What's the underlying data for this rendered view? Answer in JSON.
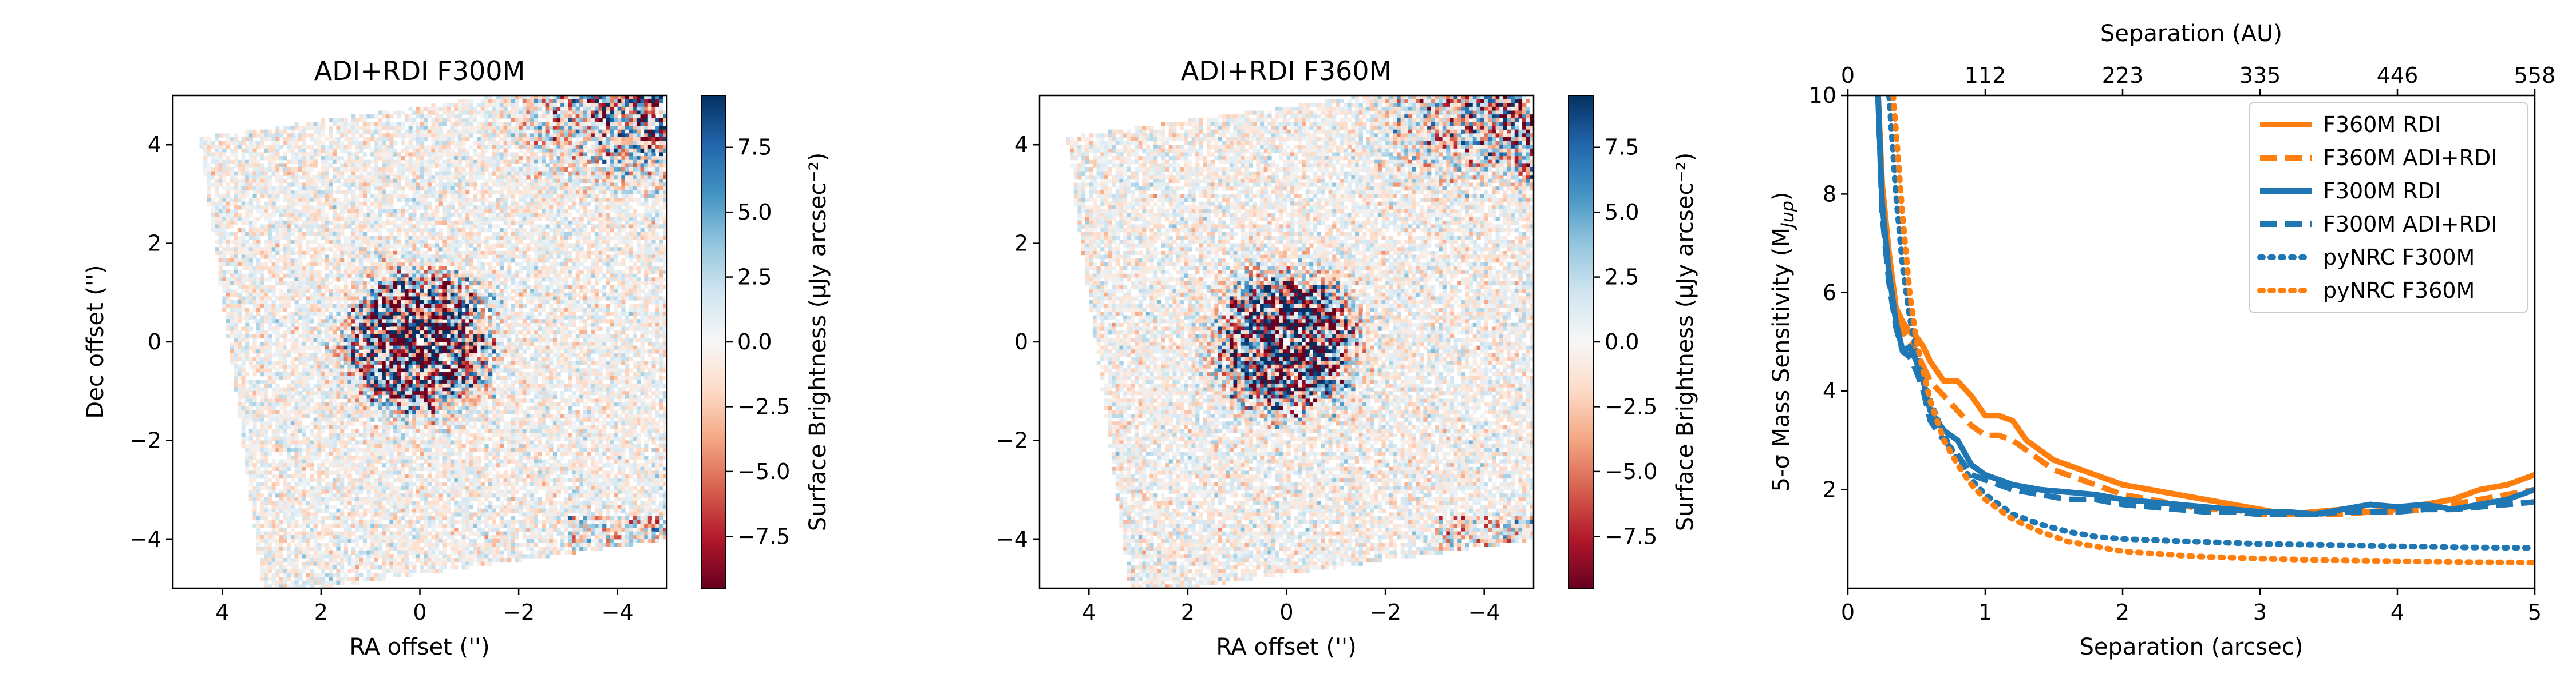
{
  "colors": {
    "f360m": "#ff7f0e",
    "f300m": "#1f77b4",
    "cmap_neg": "#67001f",
    "cmap_mid": "#f7f7f7",
    "cmap_pos": "#053061"
  },
  "chart_data": [
    {
      "type": "heatmap",
      "title": "ADI+RDI F300M",
      "xlabel": "RA offset ('')",
      "ylabel": "Dec offset ('')",
      "xlim": [
        5,
        -5
      ],
      "ylim": [
        -5,
        5
      ],
      "xticks": [
        "4",
        "2",
        "0",
        "−2",
        "−4"
      ],
      "xtick_values": [
        4,
        2,
        0,
        -2,
        -4
      ],
      "yticks": [
        "−4",
        "−2",
        "0",
        "2",
        "4"
      ],
      "ytick_values": [
        -4,
        -2,
        0,
        2,
        4
      ],
      "colorbar": {
        "label": "Surface Brightness (μJy arcsec⁻²)",
        "range": [
          -9.5,
          9.5
        ],
        "cmap": "RdBu",
        "ticks": [
          "−7.5",
          "−5.0",
          "−2.5",
          "0.0",
          "2.5",
          "5.0",
          "7.5"
        ],
        "tick_values": [
          -7.5,
          -5.0,
          -2.5,
          0.0,
          2.5,
          5.0,
          7.5
        ]
      },
      "image_footprint_rotation_deg": 8,
      "central_masked_radius_arcsec": 0.12,
      "residual_ring_radius_arcsec": 1.2,
      "bright_residual_corner": "top-right"
    },
    {
      "type": "heatmap",
      "title": "ADI+RDI F360M",
      "xlabel": "RA offset ('')",
      "ylabel": "",
      "xlim": [
        5,
        -5
      ],
      "ylim": [
        -5,
        5
      ],
      "xticks": [
        "4",
        "2",
        "0",
        "−2",
        "−4"
      ],
      "xtick_values": [
        4,
        2,
        0,
        -2,
        -4
      ],
      "yticks": [
        "−4",
        "−2",
        "0",
        "2",
        "4"
      ],
      "ytick_values": [
        -4,
        -2,
        0,
        2,
        4
      ],
      "colorbar": {
        "label": "Surface Brightness (μJy arcsec⁻²)",
        "range": [
          -9.5,
          9.5
        ],
        "cmap": "RdBu",
        "ticks": [
          "−7.5",
          "−5.0",
          "−2.5",
          "0.0",
          "2.5",
          "5.0",
          "7.5"
        ],
        "tick_values": [
          -7.5,
          -5.0,
          -2.5,
          0.0,
          2.5,
          5.0,
          7.5
        ]
      },
      "image_footprint_rotation_deg": 8,
      "central_masked_radius_arcsec": 0.12,
      "residual_ring_radius_arcsec": 1.2,
      "bright_residual_corner": "top-right"
    },
    {
      "type": "line",
      "title": "",
      "xlabel": "Separation (arcsec)",
      "x2label": "Separation (AU)",
      "ylabel": "5-σ Mass Sensitivity (M",
      "ylabel_sub": "Jup",
      "ylabel_end": ")",
      "xlim": [
        0,
        5
      ],
      "ylim": [
        0,
        10
      ],
      "xticks": [
        "0",
        "1",
        "2",
        "3",
        "4",
        "5"
      ],
      "xtick_values": [
        0,
        1,
        2,
        3,
        4,
        5
      ],
      "yticks": [
        "2",
        "4",
        "6",
        "8",
        "10"
      ],
      "ytick_values": [
        2,
        4,
        6,
        8,
        10
      ],
      "x2ticks": [
        "0",
        "112",
        "223",
        "335",
        "446",
        "558"
      ],
      "x2tick_values": [
        0,
        1,
        2,
        3,
        4,
        5
      ],
      "grid": false,
      "legend_position": "top-right",
      "series": [
        {
          "name": "F360M RDI",
          "color": "#ff7f0e",
          "style": "solid",
          "x": [
            0.22,
            0.25,
            0.3,
            0.35,
            0.4,
            0.45,
            0.5,
            0.55,
            0.6,
            0.7,
            0.8,
            0.9,
            1.0,
            1.1,
            1.2,
            1.3,
            1.4,
            1.5,
            1.6,
            1.8,
            2.0,
            2.2,
            2.4,
            2.6,
            2.8,
            3.0,
            3.2,
            3.4,
            3.6,
            3.8,
            4.0,
            4.2,
            4.4,
            4.6,
            4.8,
            5.0
          ],
          "y": [
            10.0,
            8.2,
            6.8,
            5.7,
            5.4,
            5.2,
            5.1,
            4.9,
            4.6,
            4.2,
            4.2,
            3.9,
            3.5,
            3.5,
            3.4,
            3.0,
            2.8,
            2.6,
            2.5,
            2.3,
            2.1,
            2.0,
            1.9,
            1.8,
            1.7,
            1.6,
            1.5,
            1.55,
            1.6,
            1.55,
            1.6,
            1.7,
            1.8,
            2.0,
            2.1,
            2.3
          ]
        },
        {
          "name": "F360M ADI+RDI",
          "color": "#ff7f0e",
          "style": "dashed",
          "x": [
            0.22,
            0.25,
            0.3,
            0.35,
            0.4,
            0.45,
            0.5,
            0.55,
            0.6,
            0.7,
            0.8,
            0.9,
            1.0,
            1.1,
            1.2,
            1.3,
            1.4,
            1.5,
            1.6,
            1.8,
            2.0,
            2.2,
            2.4,
            2.6,
            2.8,
            3.0,
            3.2,
            3.4,
            3.6,
            3.8,
            4.0,
            4.2,
            4.4,
            4.6,
            4.8,
            5.0
          ],
          "y": [
            10.0,
            8.0,
            6.6,
            5.5,
            5.2,
            5.0,
            4.8,
            4.5,
            4.2,
            3.9,
            3.6,
            3.3,
            3.1,
            3.1,
            3.0,
            2.8,
            2.6,
            2.4,
            2.3,
            2.1,
            1.9,
            1.8,
            1.7,
            1.6,
            1.6,
            1.5,
            1.5,
            1.5,
            1.5,
            1.55,
            1.55,
            1.6,
            1.7,
            1.8,
            1.9,
            2.0
          ]
        },
        {
          "name": "F300M RDI",
          "color": "#1f77b4",
          "style": "solid",
          "x": [
            0.22,
            0.25,
            0.3,
            0.35,
            0.4,
            0.45,
            0.5,
            0.55,
            0.6,
            0.7,
            0.8,
            0.9,
            1.0,
            1.2,
            1.4,
            1.6,
            1.8,
            2.0,
            2.2,
            2.4,
            2.6,
            2.8,
            3.0,
            3.2,
            3.4,
            3.6,
            3.8,
            4.0,
            4.2,
            4.4,
            4.6,
            4.8,
            5.0
          ],
          "y": [
            10.0,
            7.8,
            6.4,
            5.4,
            4.8,
            4.9,
            4.6,
            4.2,
            3.6,
            3.2,
            3.0,
            2.5,
            2.3,
            2.1,
            2.0,
            1.95,
            1.9,
            1.8,
            1.75,
            1.7,
            1.65,
            1.6,
            1.55,
            1.55,
            1.5,
            1.6,
            1.7,
            1.65,
            1.7,
            1.6,
            1.7,
            1.8,
            2.0
          ]
        },
        {
          "name": "F300M ADI+RDI",
          "color": "#1f77b4",
          "style": "dashed",
          "x": [
            0.22,
            0.25,
            0.3,
            0.35,
            0.4,
            0.45,
            0.5,
            0.55,
            0.6,
            0.7,
            0.8,
            0.9,
            1.0,
            1.2,
            1.4,
            1.6,
            1.8,
            2.0,
            2.2,
            2.4,
            2.6,
            2.8,
            3.0,
            3.2,
            3.4,
            3.6,
            3.8,
            4.0,
            4.2,
            4.4,
            4.6,
            4.8,
            5.0
          ],
          "y": [
            10.0,
            7.6,
            6.2,
            5.3,
            4.8,
            4.7,
            4.4,
            4.0,
            3.4,
            3.0,
            2.7,
            2.3,
            2.2,
            2.0,
            1.9,
            1.8,
            1.8,
            1.7,
            1.65,
            1.6,
            1.55,
            1.55,
            1.5,
            1.5,
            1.5,
            1.55,
            1.55,
            1.55,
            1.6,
            1.6,
            1.65,
            1.7,
            1.75
          ]
        },
        {
          "name": "pyNRC F300M",
          "color": "#1f77b4",
          "style": "dotted",
          "x": [
            0.3,
            0.35,
            0.4,
            0.45,
            0.5,
            0.6,
            0.7,
            0.8,
            0.9,
            1.0,
            1.2,
            1.4,
            1.6,
            1.8,
            2.0,
            2.5,
            3.0,
            3.5,
            4.0,
            4.5,
            5.0
          ],
          "y": [
            10.0,
            8.0,
            6.5,
            5.5,
            4.8,
            3.8,
            3.1,
            2.6,
            2.2,
            1.9,
            1.5,
            1.3,
            1.15,
            1.05,
            1.0,
            0.95,
            0.9,
            0.88,
            0.85,
            0.83,
            0.82
          ]
        },
        {
          "name": "pyNRC F360M",
          "color": "#ff7f0e",
          "style": "dotted",
          "x": [
            0.33,
            0.4,
            0.45,
            0.5,
            0.6,
            0.7,
            0.8,
            0.9,
            1.0,
            1.2,
            1.4,
            1.6,
            1.8,
            2.0,
            2.5,
            3.0,
            3.5,
            4.0,
            4.5,
            5.0
          ],
          "y": [
            10.0,
            7.5,
            6.0,
            5.0,
            3.8,
            3.0,
            2.5,
            2.1,
            1.8,
            1.4,
            1.15,
            0.95,
            0.85,
            0.75,
            0.65,
            0.6,
            0.57,
            0.55,
            0.53,
            0.52
          ]
        }
      ]
    }
  ]
}
